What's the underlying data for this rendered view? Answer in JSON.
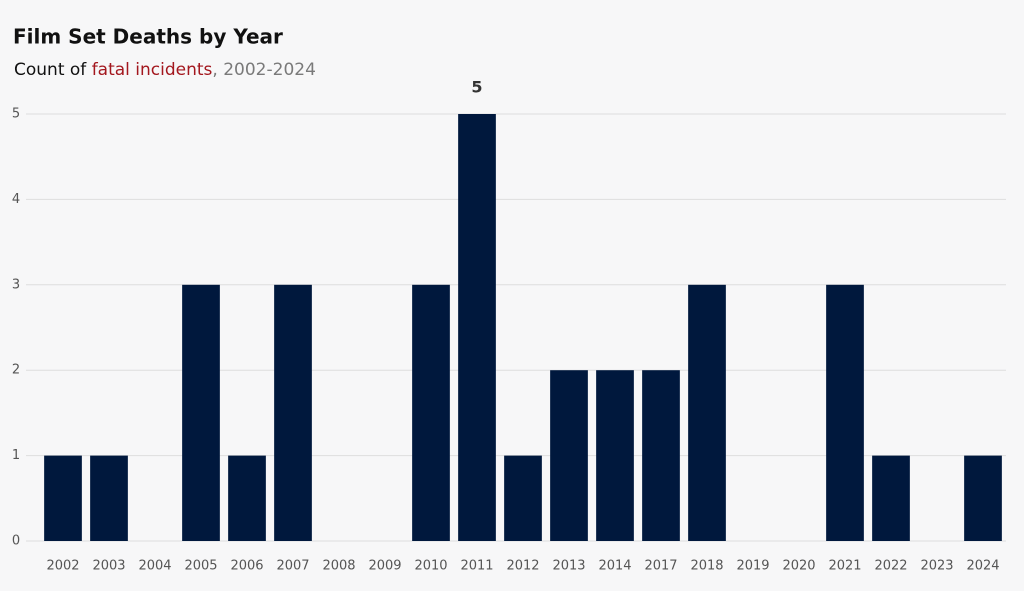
{
  "chart_data": {
    "type": "bar",
    "title": "Film Set Deaths by Year",
    "subtitle": [
      {
        "text": "Count of ",
        "color": "#111111"
      },
      {
        "text": "fatal incidents",
        "color": "#a3171e"
      },
      {
        "text": ", 2002-2024",
        "color": "#7a7a7a"
      }
    ],
    "categories": [
      "2002",
      "2003",
      "2004",
      "2005",
      "2006",
      "2007",
      "2008",
      "2009",
      "2010",
      "2011",
      "2012",
      "2013",
      "2014",
      "2017",
      "2018",
      "2019",
      "2020",
      "2021",
      "2022",
      "2023",
      "2024"
    ],
    "values": [
      1,
      1,
      0,
      3,
      1,
      3,
      0,
      0,
      3,
      5,
      1,
      2,
      2,
      2,
      3,
      0,
      0,
      3,
      1,
      0,
      1
    ],
    "color": "#00183d",
    "ylim": [
      0,
      5
    ],
    "yticks": [
      0,
      1,
      2,
      3,
      4,
      5
    ],
    "grid": true
  }
}
